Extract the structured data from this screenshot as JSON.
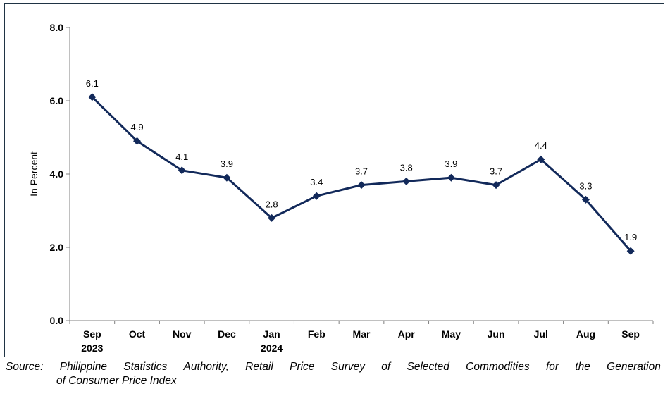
{
  "chart_data": {
    "type": "line",
    "categories": [
      [
        "Sep",
        "2023"
      ],
      [
        "Oct"
      ],
      [
        "Nov"
      ],
      [
        "Dec"
      ],
      [
        "Jan",
        "2024"
      ],
      [
        "Feb"
      ],
      [
        "Mar"
      ],
      [
        "Apr"
      ],
      [
        "May"
      ],
      [
        "Jun"
      ],
      [
        "Jul"
      ],
      [
        "Aug"
      ],
      [
        "Sep"
      ]
    ],
    "values": [
      6.1,
      4.9,
      4.1,
      3.9,
      2.8,
      3.4,
      3.7,
      3.8,
      3.9,
      3.7,
      4.4,
      3.3,
      1.9
    ],
    "data_labels": [
      "6.1",
      "4.9",
      "4.1",
      "3.9",
      "2.8",
      "3.4",
      "3.7",
      "3.8",
      "3.9",
      "3.7",
      "4.4",
      "3.3",
      "1.9"
    ],
    "ylabel": "In Percent",
    "ylim": [
      0,
      8
    ],
    "yticks": [
      0,
      2,
      4,
      6,
      8
    ],
    "ytick_labels": [
      "0.0",
      "2.0",
      "4.0",
      "6.0",
      "8.0"
    ],
    "grid": false,
    "legend": "none",
    "line_color": "#12295a"
  },
  "source": {
    "words": [
      "Source:",
      "Philippine",
      "Statistics",
      "Authority,",
      "Retail",
      "Price",
      "Survey",
      "of",
      "Selected",
      "Commodities",
      "for",
      "the",
      "Generation"
    ],
    "line2": "of Consumer Price Index"
  }
}
